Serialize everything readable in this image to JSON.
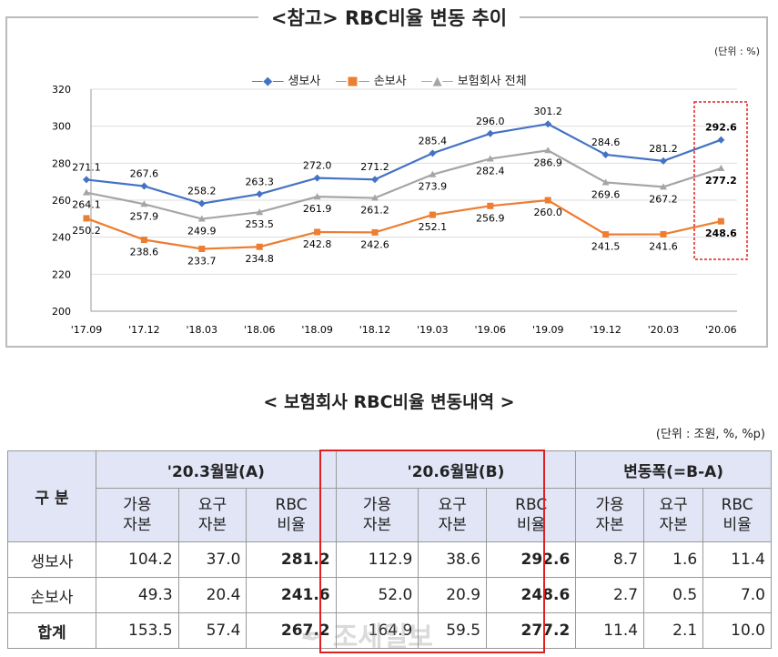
{
  "title": "<참고>  RBC비율  변동  추이",
  "unit_chart": "(단위 : %)",
  "chart_data": {
    "type": "line",
    "title": "<참고> RBC비율 변동 추이",
    "categories": [
      "'17.09",
      "'17.12",
      "'18.03",
      "'18.06",
      "'18.09",
      "'18.12",
      "'19.03",
      "'19.06",
      "'19.09",
      "'19.12",
      "'20.03",
      "'20.06"
    ],
    "ylim": [
      200,
      320
    ],
    "yticks": [
      200,
      220,
      240,
      260,
      280,
      300,
      320
    ],
    "legend_position": "top-center",
    "series": [
      {
        "name": "생보사",
        "color": "#4472c4",
        "marker": "diamond",
        "labels": "above",
        "values": [
          271.1,
          267.6,
          258.2,
          263.3,
          272.0,
          271.2,
          285.4,
          296.0,
          301.2,
          284.6,
          281.2,
          292.6
        ]
      },
      {
        "name": "손보사",
        "color": "#ed7d31",
        "marker": "square",
        "labels": "below",
        "values": [
          250.2,
          238.6,
          233.7,
          234.8,
          242.8,
          242.6,
          252.1,
          256.9,
          260.0,
          241.5,
          241.6,
          248.6
        ]
      },
      {
        "name": "보험회사 전체",
        "color": "#a5a5a5",
        "marker": "triangle",
        "labels": "below",
        "values": [
          264.1,
          257.9,
          249.9,
          253.5,
          261.9,
          261.2,
          273.9,
          282.4,
          286.9,
          269.6,
          267.2,
          277.2
        ]
      }
    ]
  },
  "table_title": "<  보험회사  RBC비율  변동내역  >",
  "unit_table": "(단위 : 조원, %, %p)",
  "table": {
    "corner": "구 분",
    "groups": [
      "'20.3월말(A)",
      "'20.6월말(B)",
      "변동폭(=B-A)"
    ],
    "subcols": [
      "가용\n자본",
      "요구\n자본",
      "RBC\n비율"
    ],
    "rows": [
      {
        "label": "생보사",
        "values": [
          "104.2",
          "37.0",
          "281.2",
          "112.9",
          "38.6",
          "292.6",
          "8.7",
          "1.6",
          "11.4"
        ]
      },
      {
        "label": "손보사",
        "values": [
          "49.3",
          "20.4",
          "241.6",
          "52.0",
          "20.9",
          "248.6",
          "2.7",
          "0.5",
          "7.0"
        ]
      },
      {
        "label": "합계",
        "values": [
          "153.5",
          "57.4",
          "267.2",
          "164.9",
          "59.5",
          "277.2",
          "11.4",
          "2.1",
          "10.0"
        ]
      }
    ]
  },
  "watermark": "조세일보"
}
